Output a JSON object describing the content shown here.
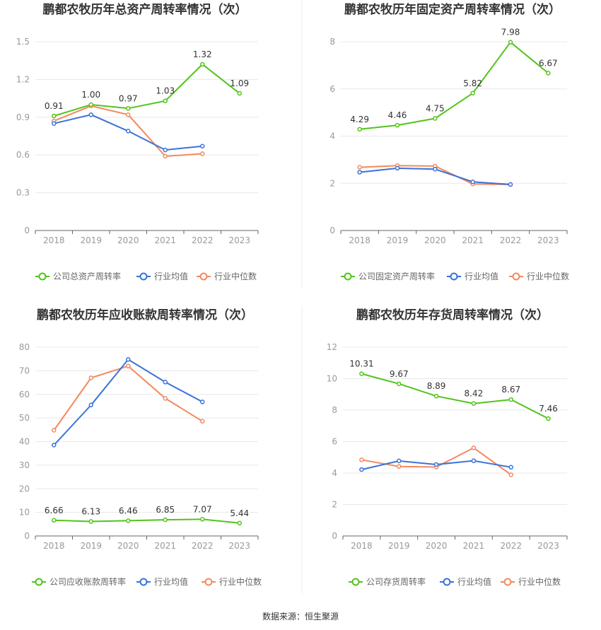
{
  "source": "数据来源：恒生聚源",
  "colors": {
    "company": "#52c41a",
    "avg": "#3a72d8",
    "median": "#f4895f"
  },
  "chart_data": [
    {
      "type": "line",
      "title": "鹏都农牧历年总资产周转率情况（次）",
      "categories": [
        "2018",
        "2019",
        "2020",
        "2021",
        "2022",
        "2023"
      ],
      "ylim": [
        0,
        1.5
      ],
      "yticks": [
        "0",
        "0.3",
        "0.6",
        "0.9",
        "1.2",
        "1.5"
      ],
      "series": [
        {
          "name": "公司总资产周转率",
          "values": [
            0.91,
            1.0,
            0.97,
            1.03,
            1.32,
            1.09
          ],
          "labels": [
            "0.91",
            "1.00",
            "0.97",
            "1.03",
            "1.32",
            "1.09"
          ]
        },
        {
          "name": "行业均值",
          "values": [
            0.85,
            0.92,
            0.79,
            0.64,
            0.67,
            null
          ]
        },
        {
          "name": "行业中位数",
          "values": [
            0.87,
            0.99,
            0.92,
            0.59,
            0.61,
            null
          ]
        }
      ]
    },
    {
      "type": "line",
      "title": "鹏都农牧历年固定资产周转率情况（次）",
      "categories": [
        "2018",
        "2019",
        "2020",
        "2021",
        "2022",
        "2023"
      ],
      "ylim": [
        0,
        8
      ],
      "yticks": [
        "0",
        "2",
        "4",
        "6",
        "8"
      ],
      "series": [
        {
          "name": "公司固定资产周转率",
          "values": [
            4.29,
            4.46,
            4.75,
            5.82,
            7.98,
            6.67
          ],
          "labels": [
            "4.29",
            "4.46",
            "4.75",
            "5.82",
            "7.98",
            "6.67"
          ]
        },
        {
          "name": "行业均值",
          "values": [
            2.47,
            2.64,
            2.6,
            2.06,
            1.95,
            null
          ]
        },
        {
          "name": "行业中位数",
          "values": [
            2.68,
            2.75,
            2.73,
            1.97,
            1.95,
            null
          ]
        }
      ]
    },
    {
      "type": "line",
      "title": "鹏都农牧历年应收账款周转率情况（次）",
      "categories": [
        "2018",
        "2019",
        "2020",
        "2021",
        "2022",
        "2023"
      ],
      "ylim": [
        0,
        80
      ],
      "yticks": [
        "0",
        "10",
        "20",
        "30",
        "40",
        "50",
        "60",
        "70",
        "80"
      ],
      "series": [
        {
          "name": "公司应收账款周转率",
          "values": [
            6.66,
            6.13,
            6.46,
            6.85,
            7.07,
            5.44
          ],
          "labels": [
            "6.66",
            "6.13",
            "6.46",
            "6.85",
            "7.07",
            "5.44"
          ]
        },
        {
          "name": "行业均值",
          "values": [
            38.5,
            55.5,
            74.8,
            65.2,
            56.8,
            null
          ]
        },
        {
          "name": "行业中位数",
          "values": [
            44.8,
            67.0,
            72.0,
            58.3,
            48.6,
            null
          ]
        }
      ]
    },
    {
      "type": "line",
      "title": "鹏都农牧历年存货周转率情况（次）",
      "categories": [
        "2018",
        "2019",
        "2020",
        "2021",
        "2022",
        "2023"
      ],
      "ylim": [
        0,
        12
      ],
      "yticks": [
        "0",
        "2",
        "4",
        "6",
        "8",
        "10",
        "12"
      ],
      "series": [
        {
          "name": "公司存货周转率",
          "values": [
            10.31,
            9.67,
            8.89,
            8.42,
            8.67,
            7.46
          ],
          "labels": [
            "10.31",
            "9.67",
            "8.89",
            "8.42",
            "8.67",
            "7.46"
          ]
        },
        {
          "name": "行业均值",
          "values": [
            4.22,
            4.77,
            4.54,
            4.78,
            4.37,
            null
          ]
        },
        {
          "name": "行业中位数",
          "values": [
            4.84,
            4.42,
            4.38,
            5.6,
            3.89,
            null
          ]
        }
      ]
    }
  ]
}
